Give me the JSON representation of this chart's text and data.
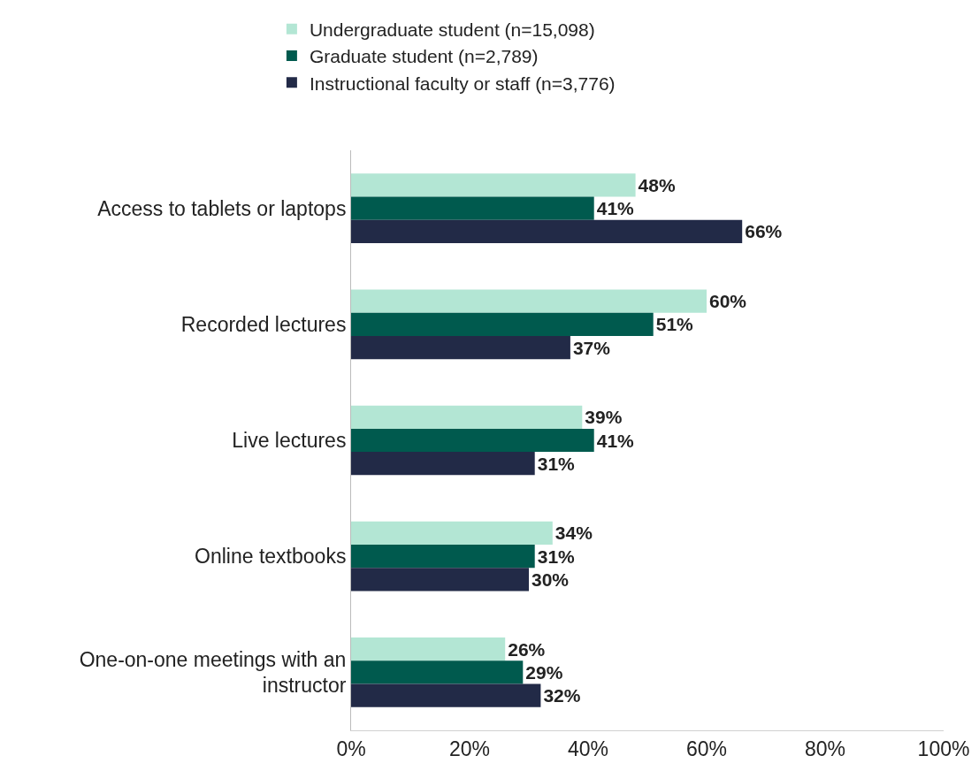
{
  "chart_data": {
    "type": "bar",
    "orientation": "horizontal",
    "categories": [
      "Access to tablets or laptops",
      "Recorded lectures",
      "Live lectures",
      "Online textbooks",
      "One-on-one meetings with an instructor"
    ],
    "series": [
      {
        "name": "Undergraduate student (n=15,098)",
        "color": "#b3e6d4",
        "values": [
          48,
          60,
          39,
          34,
          26
        ],
        "value_labels": [
          "48%",
          "60%",
          "39%",
          "34%",
          "26%"
        ]
      },
      {
        "name": "Graduate student (n=2,789)",
        "color": "#005a4e",
        "values": [
          41,
          51,
          41,
          31,
          29
        ],
        "value_labels": [
          "41%",
          "51%",
          "41%",
          "31%",
          "29%"
        ]
      },
      {
        "name": "Instructional faculty or staff (n=3,776)",
        "color": "#222a47",
        "values": [
          66,
          37,
          31,
          30,
          32
        ],
        "value_labels": [
          "66%",
          "37%",
          "31%",
          "30%",
          "32%"
        ]
      }
    ],
    "xlim": [
      0,
      100
    ],
    "xticks": [
      {
        "value": 0,
        "label": "0%"
      },
      {
        "value": 20,
        "label": "20%"
      },
      {
        "value": 40,
        "label": "40%"
      },
      {
        "value": 60,
        "label": "60%"
      },
      {
        "value": 80,
        "label": "80%"
      },
      {
        "value": 100,
        "label": "100%"
      }
    ],
    "legend": "top"
  }
}
